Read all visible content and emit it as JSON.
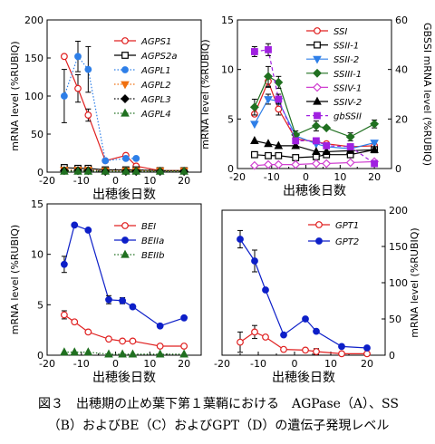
{
  "caption": {
    "line1": "図３　出穂期の止め葉下第１葉鞘における　AGPase（A）、SS",
    "line2": "（B）およびBE（C）およびGPT（D）の遺伝子発現レベル"
  },
  "chart_data": [
    {
      "id": "A",
      "type": "line",
      "xlabel": "出穂後日数",
      "ylabel": "mRNA level (%RUBIQ)",
      "xlim": [
        -20,
        25
      ],
      "ylim": [
        0,
        200
      ],
      "xticks": [
        -20,
        -10,
        0,
        10,
        20
      ],
      "yticks": [
        0,
        50,
        100,
        150,
        200
      ],
      "legend_position": "top-right",
      "series": [
        {
          "name": "AGPS1",
          "color": "#e02020",
          "marker": "circle-open",
          "dash": "solid",
          "x": [
            -15,
            -11,
            -8,
            -3,
            3,
            6,
            13,
            20
          ],
          "y": [
            152,
            110,
            75,
            15,
            22,
            8,
            2,
            2
          ],
          "err": [
            0,
            18,
            8,
            0,
            0,
            0,
            0,
            0
          ]
        },
        {
          "name": "AGPS2a",
          "color": "#000000",
          "marker": "square-open",
          "dash": "solid",
          "x": [
            -15,
            -11,
            -8,
            -3,
            3,
            6,
            13,
            20
          ],
          "y": [
            6,
            5,
            5,
            3,
            3,
            3,
            2,
            2
          ],
          "err": [
            0,
            0,
            0,
            0,
            0,
            0,
            0,
            0
          ]
        },
        {
          "name": "AGPL1",
          "color": "#2e7fe8",
          "marker": "circle-filled",
          "dash": "dotted",
          "x": [
            -15,
            -11,
            -8,
            -3,
            3,
            6
          ],
          "y": [
            100,
            152,
            135,
            15,
            18,
            18
          ],
          "err": [
            35,
            20,
            30,
            0,
            0,
            0
          ]
        },
        {
          "name": "AGPL2",
          "color": "#f07010",
          "marker": "triangle-down-filled",
          "dash": "dotted",
          "x": [
            -15,
            -11,
            -8,
            -3,
            3,
            6,
            13,
            20
          ],
          "y": [
            3,
            3,
            3,
            2,
            2,
            2,
            2,
            2
          ],
          "err": [
            0,
            0,
            0,
            0,
            0,
            0,
            0,
            0
          ]
        },
        {
          "name": "AGPL3",
          "color": "#000000",
          "marker": "diamond-filled",
          "dash": "dotted",
          "x": [
            -15,
            -11,
            -8,
            -3,
            3,
            6,
            13,
            20
          ],
          "y": [
            2,
            2,
            2,
            1,
            1,
            1,
            1,
            1
          ],
          "err": [
            0,
            0,
            0,
            0,
            0,
            0,
            0,
            0
          ]
        },
        {
          "name": "AGPL4",
          "color": "#207020",
          "marker": "triangle-up-filled",
          "dash": "dotted",
          "x": [
            -15,
            -11,
            -8,
            -3,
            3,
            6,
            13,
            20
          ],
          "y": [
            1,
            1,
            1,
            1,
            1,
            1,
            1,
            1
          ],
          "err": [
            0,
            0,
            0,
            0,
            0,
            0,
            0,
            0
          ]
        }
      ]
    },
    {
      "id": "B",
      "type": "line",
      "xlabel": "出穂後日数",
      "ylabel": "mRNA level (%RUBIQ)",
      "ylabel_right": "GBSSI mRNA level (%RUBIQ)",
      "xlim": [
        -20,
        25
      ],
      "ylim": [
        0,
        15
      ],
      "xticks": [
        -20,
        -10,
        0,
        10,
        20
      ],
      "yticks": [
        0,
        5,
        10,
        15
      ],
      "ylim_right": [
        0,
        60
      ],
      "yticks_right": [
        0,
        20,
        40,
        60
      ],
      "legend_position": "top-right",
      "series": [
        {
          "name": "SSI",
          "color": "#e02020",
          "marker": "circle-open",
          "dash": "solid",
          "x": [
            -15,
            -11,
            -8,
            -3,
            3,
            6,
            13,
            20
          ],
          "y": [
            5.5,
            8.8,
            6.0,
            3.0,
            2.7,
            2.5,
            2.2,
            2.3
          ],
          "err": [
            0,
            0.6,
            0.6,
            0,
            0,
            0,
            0,
            0
          ]
        },
        {
          "name": "SSII-1",
          "color": "#000000",
          "marker": "square-open",
          "dash": "solid",
          "x": [
            -15,
            -11,
            -8,
            -3,
            3,
            6,
            13,
            20
          ],
          "y": [
            1.4,
            1.3,
            1.3,
            1.1,
            1.2,
            1.4,
            1.4,
            1.9
          ],
          "err": [
            0,
            0,
            0,
            0,
            0,
            0,
            0,
            0
          ]
        },
        {
          "name": "SSII-2",
          "color": "#2e7fe8",
          "marker": "triangle-down-filled",
          "dash": "solid",
          "x": [
            -15,
            -11,
            -8,
            -3,
            3,
            6,
            13,
            20
          ],
          "y": [
            4.5,
            7.0,
            6.8,
            3.3,
            2.5,
            2.2,
            2.0,
            2.6
          ],
          "err": [
            0,
            0.5,
            0,
            0,
            0,
            0,
            0,
            0
          ]
        },
        {
          "name": "SSIII-1",
          "color": "#207020",
          "marker": "diamond-filled",
          "dash": "solid",
          "x": [
            -15,
            -11,
            -8,
            -3,
            3,
            6,
            13,
            20
          ],
          "y": [
            6.2,
            9.3,
            8.7,
            3.4,
            4.3,
            4.1,
            3.2,
            4.5
          ],
          "err": [
            0.8,
            1.0,
            0.6,
            0.4,
            0.5,
            0,
            0.4,
            0.4
          ]
        },
        {
          "name": "SSIV-1",
          "color": "#d040d0",
          "marker": "diamond-open",
          "dash": "solid",
          "x": [
            -15,
            -11,
            -8,
            -3,
            3,
            6,
            13,
            20
          ],
          "y": [
            0.3,
            0.4,
            0.4,
            0.4,
            0.5,
            0.5,
            0.6,
            0.7
          ],
          "err": [
            0,
            0,
            0,
            0,
            0,
            0,
            0,
            0
          ]
        },
        {
          "name": "SSIV-2",
          "color": "#000000",
          "marker": "triangle-up-filled",
          "dash": "solid",
          "x": [
            -15,
            -11,
            -8,
            -3,
            3,
            6,
            13,
            20
          ],
          "y": [
            2.8,
            2.5,
            2.3,
            2.3,
            1.7,
            1.7,
            1.8,
            1.9
          ],
          "err": [
            0,
            0,
            0,
            0,
            0,
            0,
            0,
            0
          ]
        },
        {
          "name": "gbSSII",
          "color": "#a020e0",
          "marker": "square-filled",
          "dash": "dashed",
          "x": [
            -15,
            -11,
            -8,
            -3,
            3,
            6,
            13,
            20
          ],
          "y": [
            11.8,
            12.0,
            7.0,
            2.8,
            2.8,
            2.3,
            2.2,
            0.5
          ],
          "err": [
            0.5,
            0.6,
            0.5,
            0,
            0,
            0,
            0,
            0
          ]
        }
      ]
    },
    {
      "id": "C",
      "type": "line",
      "xlabel": "出穂後日数",
      "ylabel": "mRNA level (%RUBIQ)",
      "xlim": [
        -20,
        25
      ],
      "ylim": [
        0,
        15
      ],
      "xticks": [
        -20,
        -10,
        0,
        10,
        20
      ],
      "yticks": [
        0,
        5,
        10,
        15
      ],
      "legend_position": "top-right",
      "series": [
        {
          "name": "BEI",
          "color": "#e02020",
          "marker": "circle-open",
          "dash": "solid",
          "x": [
            -15,
            -12,
            -8,
            -2,
            2,
            5,
            13,
            20
          ],
          "y": [
            4.0,
            3.3,
            2.3,
            1.6,
            1.4,
            1.4,
            0.9,
            0.9
          ],
          "err": [
            0.4,
            0,
            0,
            0,
            0,
            0,
            0,
            0
          ]
        },
        {
          "name": "BEIIa",
          "color": "#0d1fc8",
          "marker": "circle-filled",
          "dash": "solid",
          "x": [
            -15,
            -12,
            -8,
            -2,
            2,
            5,
            13,
            20
          ],
          "y": [
            9.0,
            12.9,
            12.4,
            5.5,
            5.4,
            4.8,
            2.9,
            3.7
          ],
          "err": [
            0.8,
            0,
            0,
            0.4,
            0.3,
            0,
            0,
            0
          ]
        },
        {
          "name": "BEIIb",
          "color": "#207020",
          "marker": "triangle-up-filled",
          "dash": "dotted",
          "x": [
            -15,
            -12,
            -8,
            -2,
            2,
            5,
            13,
            20
          ],
          "y": [
            0.3,
            0.3,
            0.3,
            0.1,
            0.1,
            0.1,
            0.1,
            0.1
          ],
          "err": [
            0,
            0,
            0,
            0,
            0,
            0,
            0,
            0
          ]
        }
      ]
    },
    {
      "id": "D",
      "type": "line",
      "xlabel": "出穂後日数",
      "ylabel": "mRNA level (%RUBIQ)",
      "xlim": [
        -20,
        25
      ],
      "ylim": [
        0,
        200
      ],
      "xticks": [
        -20,
        -10,
        0,
        10,
        20
      ],
      "yticks": [
        0,
        50,
        100,
        150,
        200
      ],
      "y_axis_side": "right",
      "legend_position": "top-right",
      "series": [
        {
          "name": "GPT1",
          "color": "#e02020",
          "marker": "circle-open",
          "dash": "solid",
          "x": [
            -15,
            -11,
            -8,
            -3,
            3,
            6,
            13,
            20
          ],
          "y": [
            18,
            32,
            25,
            8,
            7,
            5,
            2,
            2
          ],
          "err": [
            14,
            9,
            0,
            0,
            0,
            4,
            0,
            0
          ]
        },
        {
          "name": "GPT2",
          "color": "#0d1fc8",
          "marker": "circle-filled",
          "dash": "solid",
          "x": [
            -15,
            -11,
            -8,
            -3,
            3,
            6,
            13,
            20
          ],
          "y": [
            160,
            130,
            90,
            28,
            50,
            33,
            12,
            10
          ],
          "err": [
            12,
            15,
            0,
            0,
            0,
            0,
            0,
            0
          ]
        }
      ]
    }
  ]
}
